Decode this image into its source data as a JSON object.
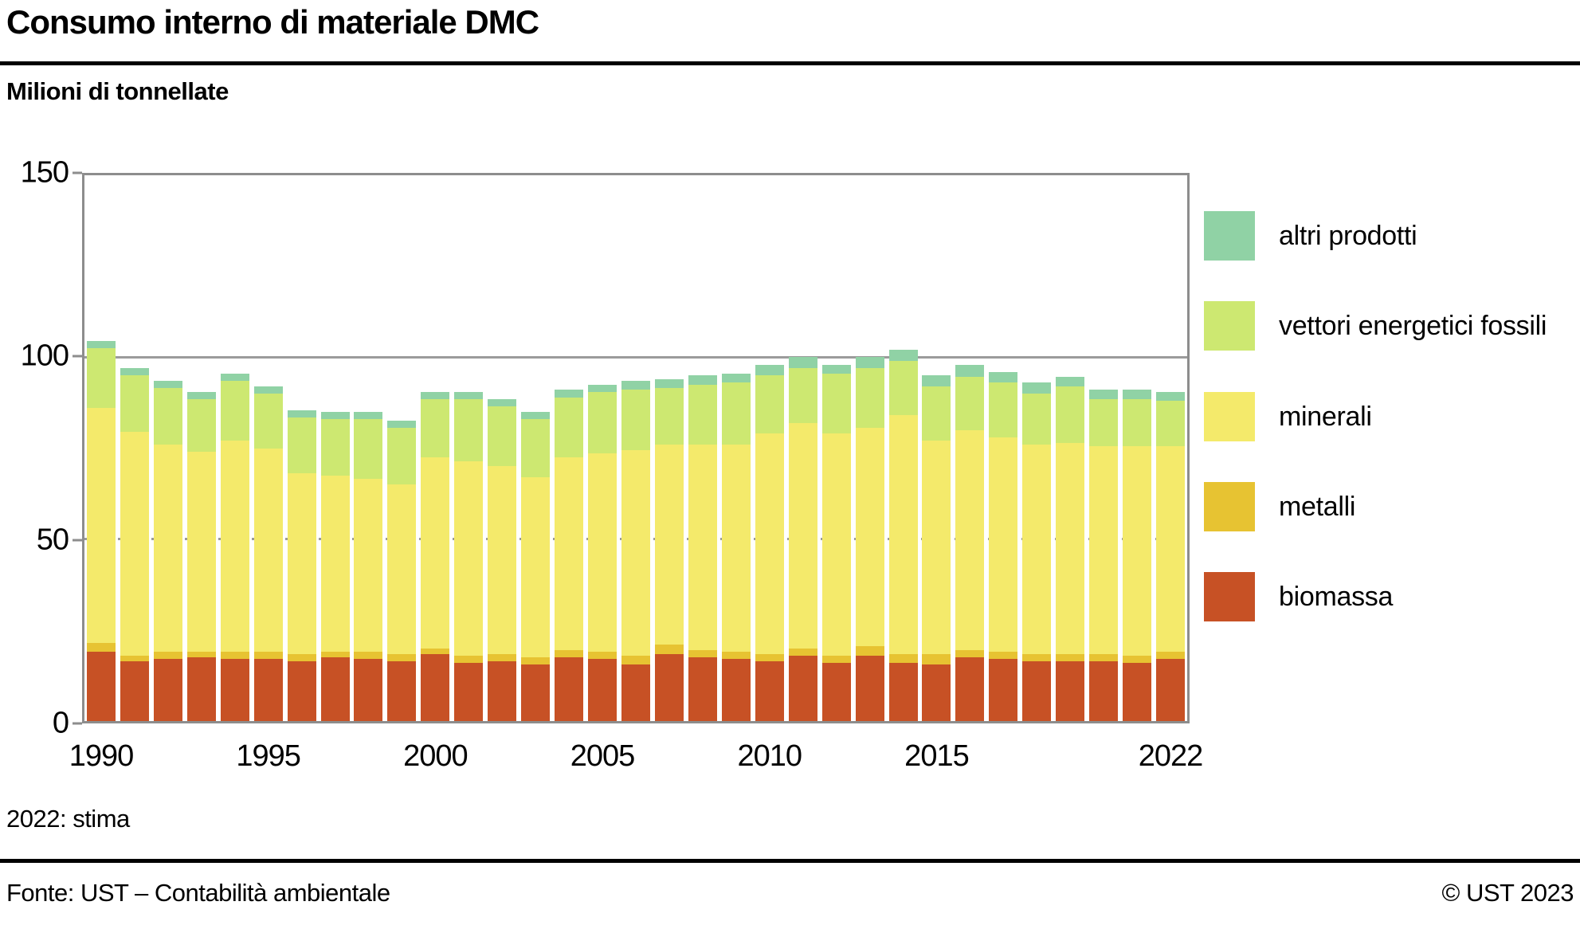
{
  "header": {
    "title": "Consumo interno di materiale DMC",
    "subtitle": "Milioni di tonnellate"
  },
  "footer": {
    "note": "2022: stima",
    "source": "Fonte: UST – Contabilità ambientale",
    "copyright": "© UST 2023"
  },
  "colors": {
    "biomassa": "#c75125",
    "metalli": "#e7c332",
    "minerali": "#f4ea6b",
    "vettori_energetici_fossili": "#cde871",
    "altri_prodotti": "#90d2a5",
    "grid": "#9b9b9b",
    "frame": "#8d8d8d",
    "text": "#000000"
  },
  "chart_data": {
    "type": "bar",
    "stacked": true,
    "title": "Consumo interno di materiale DMC",
    "ylabel": "Milioni di tonnellate",
    "xlabel": "",
    "ylim": [
      0,
      150
    ],
    "yticks": [
      0,
      50,
      100,
      150
    ],
    "grid": {
      "y100": "solid",
      "y50": "dotted"
    },
    "legend_position": "right",
    "categories": [
      1990,
      1991,
      1992,
      1993,
      1994,
      1995,
      1996,
      1997,
      1998,
      1999,
      2000,
      2001,
      2002,
      2003,
      2004,
      2005,
      2006,
      2007,
      2008,
      2009,
      2010,
      2011,
      2012,
      2013,
      2014,
      2015,
      2016,
      2017,
      2018,
      2019,
      2020,
      2021,
      2022
    ],
    "xtick_years": [
      1990,
      1995,
      2000,
      2005,
      2010,
      2015,
      2022
    ],
    "series": [
      {
        "name": "biomassa",
        "color_key": "biomassa",
        "values": [
          19,
          16.5,
          17,
          17.5,
          17,
          17,
          16.5,
          17.5,
          17,
          16.5,
          18.5,
          16,
          16.5,
          15.5,
          17.5,
          17,
          15.5,
          18.5,
          17.5,
          17,
          16.5,
          18,
          16,
          18,
          16,
          15.5,
          17.5,
          17,
          16.5,
          16.5,
          16.5,
          16,
          17
        ]
      },
      {
        "name": "metalli",
        "color_key": "metalli",
        "values": [
          2.5,
          1.5,
          2,
          1.5,
          2,
          2,
          2,
          1.5,
          2,
          2,
          1.5,
          2,
          2,
          2,
          2,
          2,
          2.5,
          2.5,
          2,
          2,
          2,
          2,
          2,
          2.5,
          2.5,
          3,
          2,
          2,
          2,
          2,
          2,
          2,
          2
        ]
      },
      {
        "name": "minerali",
        "color_key": "minerali",
        "values": [
          64.5,
          61.5,
          57,
          55,
          58,
          56,
          49.5,
          48.5,
          47.5,
          46.5,
          52.5,
          53.5,
          51.5,
          49.5,
          53,
          54.5,
          56.5,
          55,
          56.5,
          57,
          60.5,
          62,
          61,
          60,
          65.5,
          58.5,
          60.5,
          59,
          57.5,
          58,
          57,
          57.5,
          56.5
        ]
      },
      {
        "name": "vettori energetici fossili",
        "color_key": "vettori_energetici_fossili",
        "values": [
          16.5,
          15.5,
          15.5,
          14.5,
          16.5,
          15,
          15.5,
          15.5,
          16.5,
          15.5,
          16,
          17,
          16.5,
          16,
          16.5,
          17,
          16.5,
          15.5,
          16.5,
          17,
          16,
          15,
          16.5,
          16.5,
          15,
          15,
          14.5,
          15,
          14,
          15.5,
          13,
          13,
          12.5
        ]
      },
      {
        "name": "altri prodotti",
        "color_key": "altri_prodotti",
        "values": [
          2,
          2,
          2,
          2,
          2,
          2,
          2,
          2,
          2,
          2,
          2,
          2,
          2,
          2,
          2,
          2,
          2.5,
          2.5,
          2.5,
          2.5,
          3,
          3,
          2.5,
          3,
          3,
          3,
          3.5,
          3,
          3,
          2.5,
          2.5,
          2.5,
          2.5
        ]
      }
    ],
    "legend": [
      {
        "label": "altri prodotti",
        "color_key": "altri_prodotti"
      },
      {
        "label": "vettori energetici fossili",
        "color_key": "vettori_energetici_fossili"
      },
      {
        "label": "minerali",
        "color_key": "minerali"
      },
      {
        "label": "metalli",
        "color_key": "metalli"
      },
      {
        "label": "biomassa",
        "color_key": "biomassa"
      }
    ]
  }
}
